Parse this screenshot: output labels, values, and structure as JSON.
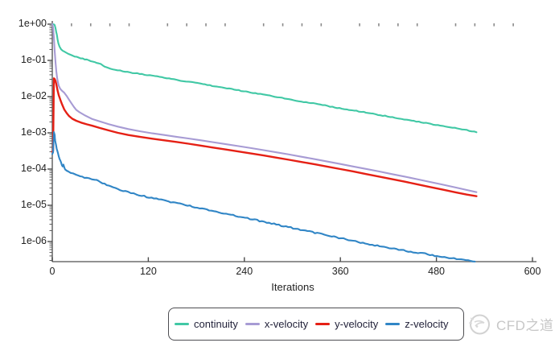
{
  "watermark": {
    "text": "CFD之道"
  },
  "chart_data": {
    "type": "line",
    "title": "",
    "xlabel": "Iterations",
    "ylabel": "",
    "y_scale": "log",
    "xlim": [
      0,
      600
    ],
    "ylim": [
      2.8e-07,
      1.2
    ],
    "x_ticks": [
      0,
      120,
      240,
      360,
      480,
      600
    ],
    "x_minor_tick_step": 24,
    "y_tick_labels": [
      "1e+00",
      "1e-01",
      "1e-02",
      "1e-03",
      "1e-04",
      "1e-05",
      "1e-06"
    ],
    "grid": "off",
    "legend_position": "bottom",
    "axis_color": "#6e6e6e",
    "series": [
      {
        "name": "continuity",
        "color": "#41c8a5",
        "noise": 0.5,
        "points": [
          [
            0,
            1.0
          ],
          [
            2,
            1.0
          ],
          [
            3,
            0.93
          ],
          [
            4,
            0.76
          ],
          [
            5,
            0.6
          ],
          [
            6,
            0.46
          ],
          [
            7,
            0.34
          ],
          [
            8,
            0.27
          ],
          [
            9,
            0.235
          ],
          [
            11,
            0.205
          ],
          [
            13,
            0.187
          ],
          [
            16,
            0.168
          ],
          [
            20,
            0.152
          ],
          [
            24,
            0.14
          ],
          [
            28,
            0.13
          ],
          [
            33,
            0.119
          ],
          [
            38,
            0.111
          ],
          [
            43,
            0.104
          ],
          [
            48,
            0.097
          ],
          [
            53,
            0.091
          ],
          [
            58,
            0.083
          ],
          [
            63,
            0.073
          ],
          [
            70,
            0.062
          ],
          [
            78,
            0.0555
          ],
          [
            88,
            0.05
          ],
          [
            100,
            0.0455
          ],
          [
            112,
            0.0415
          ],
          [
            125,
            0.0375
          ],
          [
            140,
            0.033
          ],
          [
            155,
            0.0291
          ],
          [
            170,
            0.0256
          ],
          [
            185,
            0.0226
          ],
          [
            200,
            0.0199
          ],
          [
            215,
            0.0174
          ],
          [
            230,
            0.0152
          ],
          [
            245,
            0.0133
          ],
          [
            260,
            0.0117
          ],
          [
            275,
            0.0102
          ],
          [
            290,
            0.0089
          ],
          [
            305,
            0.0078
          ],
          [
            320,
            0.0068
          ],
          [
            335,
            0.006
          ],
          [
            350,
            0.0052
          ],
          [
            365,
            0.00459
          ],
          [
            380,
            0.00402
          ],
          [
            395,
            0.00352
          ],
          [
            410,
            0.00308
          ],
          [
            425,
            0.0027
          ],
          [
            440,
            0.00236
          ],
          [
            455,
            0.00207
          ],
          [
            470,
            0.00181
          ],
          [
            485,
            0.00159
          ],
          [
            500,
            0.00139
          ],
          [
            515,
            0.00122
          ],
          [
            530,
            0.00105
          ]
        ]
      },
      {
        "name": "x-velocity",
        "color": "#a79bd4",
        "noise": 0,
        "points": [
          [
            0,
            1.0
          ],
          [
            1,
            0.82
          ],
          [
            2,
            0.42
          ],
          [
            3,
            0.18
          ],
          [
            4,
            0.09
          ],
          [
            5,
            0.05
          ],
          [
            6,
            0.033
          ],
          [
            7,
            0.025
          ],
          [
            8,
            0.02
          ],
          [
            10,
            0.0163
          ],
          [
            12,
            0.0146
          ],
          [
            15,
            0.0128
          ],
          [
            18,
            0.0104
          ],
          [
            21,
            0.0082
          ],
          [
            24,
            0.0065
          ],
          [
            27,
            0.0052
          ],
          [
            30,
            0.0043
          ],
          [
            34,
            0.0037
          ],
          [
            40,
            0.0031
          ],
          [
            45,
            0.00272
          ],
          [
            50,
            0.0024
          ],
          [
            60,
            0.00205
          ],
          [
            70,
            0.00175
          ],
          [
            82,
            0.00148
          ],
          [
            95,
            0.00127
          ],
          [
            110,
            0.0011
          ],
          [
            125,
            0.00097
          ],
          [
            140,
            0.00087
          ],
          [
            155,
            0.00078
          ],
          [
            170,
            0.0007
          ],
          [
            185,
            0.000625
          ],
          [
            200,
            0.000555
          ],
          [
            216,
            0.00049
          ],
          [
            232,
            0.000432
          ],
          [
            248,
            0.00038
          ],
          [
            264,
            0.000332
          ],
          [
            280,
            0.00029
          ],
          [
            296,
            0.000252
          ],
          [
            312,
            0.000218
          ],
          [
            328,
            0.000188
          ],
          [
            344,
            0.000161
          ],
          [
            360,
            0.000138
          ],
          [
            376,
            0.000118
          ],
          [
            392,
            0.000101
          ],
          [
            408,
            8.6e-05
          ],
          [
            424,
            7.3e-05
          ],
          [
            440,
            6.2e-05
          ],
          [
            456,
            5.25e-05
          ],
          [
            472,
            4.4e-05
          ],
          [
            488,
            3.7e-05
          ],
          [
            504,
            3.1e-05
          ],
          [
            518,
            2.65e-05
          ],
          [
            530,
            2.3e-05
          ]
        ]
      },
      {
        "name": "y-velocity",
        "color": "#e52015",
        "noise": 0,
        "points": [
          [
            0,
            0.0003
          ],
          [
            1,
            0.00032
          ],
          [
            2,
            0.032
          ],
          [
            3,
            0.0305
          ],
          [
            4,
            0.027
          ],
          [
            5,
            0.022
          ],
          [
            6,
            0.017
          ],
          [
            7,
            0.0135
          ],
          [
            8,
            0.011
          ],
          [
            10,
            0.0082
          ],
          [
            12,
            0.0063
          ],
          [
            15,
            0.0044
          ],
          [
            18,
            0.0035
          ],
          [
            21,
            0.0029
          ],
          [
            25,
            0.00245
          ],
          [
            30,
            0.00215
          ],
          [
            36,
            0.00192
          ],
          [
            43,
            0.00172
          ],
          [
            50,
            0.00157
          ],
          [
            60,
            0.00135
          ],
          [
            70,
            0.00117
          ],
          [
            82,
            0.001
          ],
          [
            95,
            0.00087
          ],
          [
            110,
            0.00077
          ],
          [
            125,
            0.00069
          ],
          [
            140,
            0.00062
          ],
          [
            155,
            0.00056
          ],
          [
            170,
            0.0005
          ],
          [
            185,
            0.000445
          ],
          [
            200,
            0.000395
          ],
          [
            216,
            0.000349
          ],
          [
            232,
            0.000307
          ],
          [
            248,
            0.00027
          ],
          [
            264,
            0.000237
          ],
          [
            280,
            0.000207
          ],
          [
            296,
            0.00018
          ],
          [
            312,
            0.000156
          ],
          [
            328,
            0.000135
          ],
          [
            344,
            0.000116
          ],
          [
            360,
            0.0001
          ],
          [
            376,
            8.6e-05
          ],
          [
            392,
            7.3e-05
          ],
          [
            408,
            6.2e-05
          ],
          [
            424,
            5.3e-05
          ],
          [
            440,
            4.5e-05
          ],
          [
            456,
            3.8e-05
          ],
          [
            472,
            3.2e-05
          ],
          [
            488,
            2.7e-05
          ],
          [
            504,
            2.28e-05
          ],
          [
            518,
            1.98e-05
          ],
          [
            530,
            1.78e-05
          ]
        ]
      },
      {
        "name": "z-velocity",
        "color": "#3186c6",
        "noise": 0.8,
        "points": [
          [
            0,
            0.00026
          ],
          [
            1,
            0.00028
          ],
          [
            2,
            0.00105
          ],
          [
            3,
            0.00085
          ],
          [
            4,
            0.00055
          ],
          [
            5,
            0.00042
          ],
          [
            6,
            0.00033
          ],
          [
            7,
            0.00027
          ],
          [
            8,
            0.000225
          ],
          [
            9,
            0.000195
          ],
          [
            10,
            0.00017
          ],
          [
            11,
            0.000148
          ],
          [
            12,
            0.000132
          ],
          [
            13,
            0.000118
          ],
          [
            14,
            0.000128
          ],
          [
            15,
            0.000112
          ],
          [
            16,
            0.000101
          ],
          [
            18,
            9.2e-05
          ],
          [
            20,
            8.5e-05
          ],
          [
            23,
            7.8e-05
          ],
          [
            26,
            7.3e-05
          ],
          [
            30,
            6.8e-05
          ],
          [
            35,
            6.3e-05
          ],
          [
            40,
            5.9e-05
          ],
          [
            46,
            5.5e-05
          ],
          [
            53,
            5.1e-05
          ],
          [
            60,
            4.4e-05
          ],
          [
            68,
            3.7e-05
          ],
          [
            76,
            3.1e-05
          ],
          [
            85,
            2.65e-05
          ],
          [
            95,
            2.3e-05
          ],
          [
            105,
            2e-05
          ],
          [
            118,
            1.7e-05
          ],
          [
            130,
            1.5e-05
          ],
          [
            145,
            1.28e-05
          ],
          [
            160,
            1.09e-05
          ],
          [
            175,
            9.3e-06
          ],
          [
            190,
            7.9e-06
          ],
          [
            205,
            6.7e-06
          ],
          [
            220,
            5.7e-06
          ],
          [
            235,
            4.85e-06
          ],
          [
            250,
            4.1e-06
          ],
          [
            265,
            3.5e-06
          ],
          [
            280,
            2.95e-06
          ],
          [
            295,
            2.5e-06
          ],
          [
            310,
            2.13e-06
          ],
          [
            325,
            1.81e-06
          ],
          [
            340,
            1.54e-06
          ],
          [
            355,
            1.31e-06
          ],
          [
            370,
            1.11e-06
          ],
          [
            385,
            9.4e-07
          ],
          [
            400,
            8e-07
          ],
          [
            415,
            7e-07
          ],
          [
            430,
            6.1e-07
          ],
          [
            445,
            5.4e-07
          ],
          [
            460,
            4.8e-07
          ],
          [
            475,
            4.2e-07
          ],
          [
            490,
            3.7e-07
          ],
          [
            505,
            3.3e-07
          ],
          [
            517,
            3e-07
          ],
          [
            528,
            2.75e-07
          ]
        ]
      }
    ]
  }
}
